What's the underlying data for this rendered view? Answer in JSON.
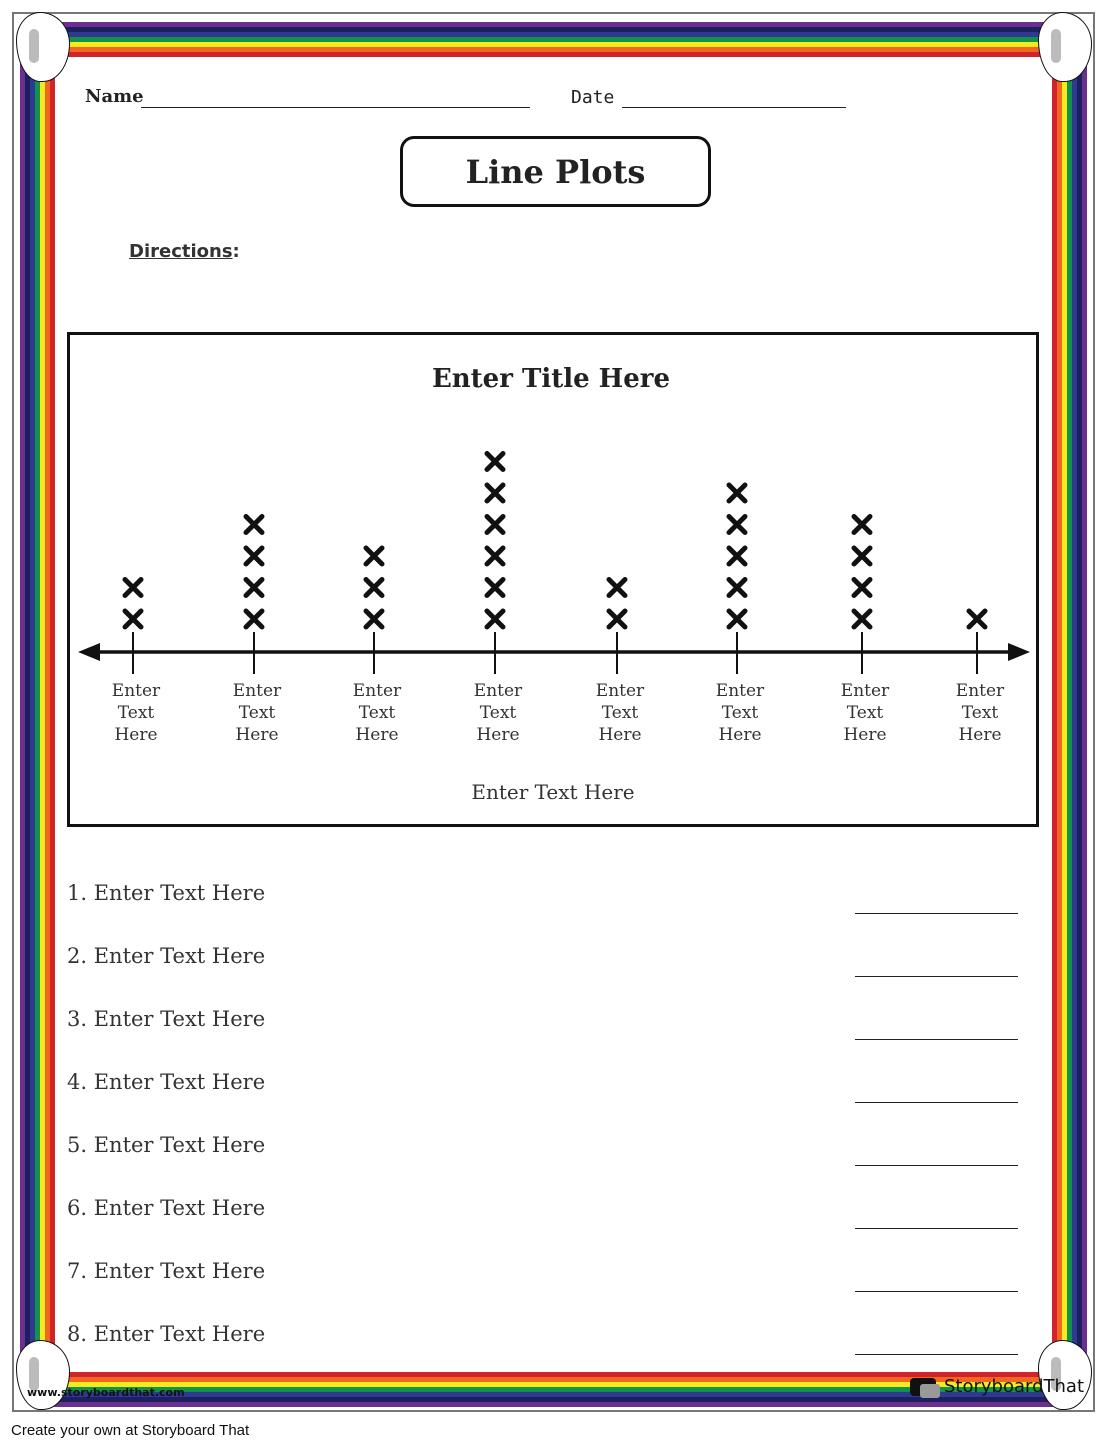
{
  "header": {
    "name_label": "Name",
    "date_label": "Date"
  },
  "title": "Line Plots",
  "directions_label": "Directions",
  "directions_colon": ":",
  "chart_data": {
    "type": "line plot",
    "title": "Enter Title Here",
    "xlabel": "Enter Text Here",
    "categories": [
      "Enter Text Here",
      "Enter Text Here",
      "Enter Text Here",
      "Enter Text Here",
      "Enter Text Here",
      "Enter Text Here",
      "Enter Text Here",
      "Enter Text Here"
    ],
    "values": [
      2,
      4,
      3,
      6,
      2,
      5,
      4,
      1
    ],
    "marker": "x"
  },
  "questions": [
    "1. Enter Text Here",
    "2. Enter Text Here",
    "3. Enter Text Here",
    "4. Enter Text Here",
    "5. Enter Text Here",
    "6. Enter Text Here",
    "7. Enter Text Here",
    "8. Enter Text Here"
  ],
  "footer": {
    "url": "www.storyboardthat.com",
    "logo": "StoryboardThat",
    "credit": "Create your own at Storyboard That"
  },
  "colors": {
    "rainbow": [
      "#6a2f8f",
      "#1e1f5e",
      "#2e3a92",
      "#13924a",
      "#f6e91c",
      "#f26522",
      "#d1232a"
    ]
  }
}
